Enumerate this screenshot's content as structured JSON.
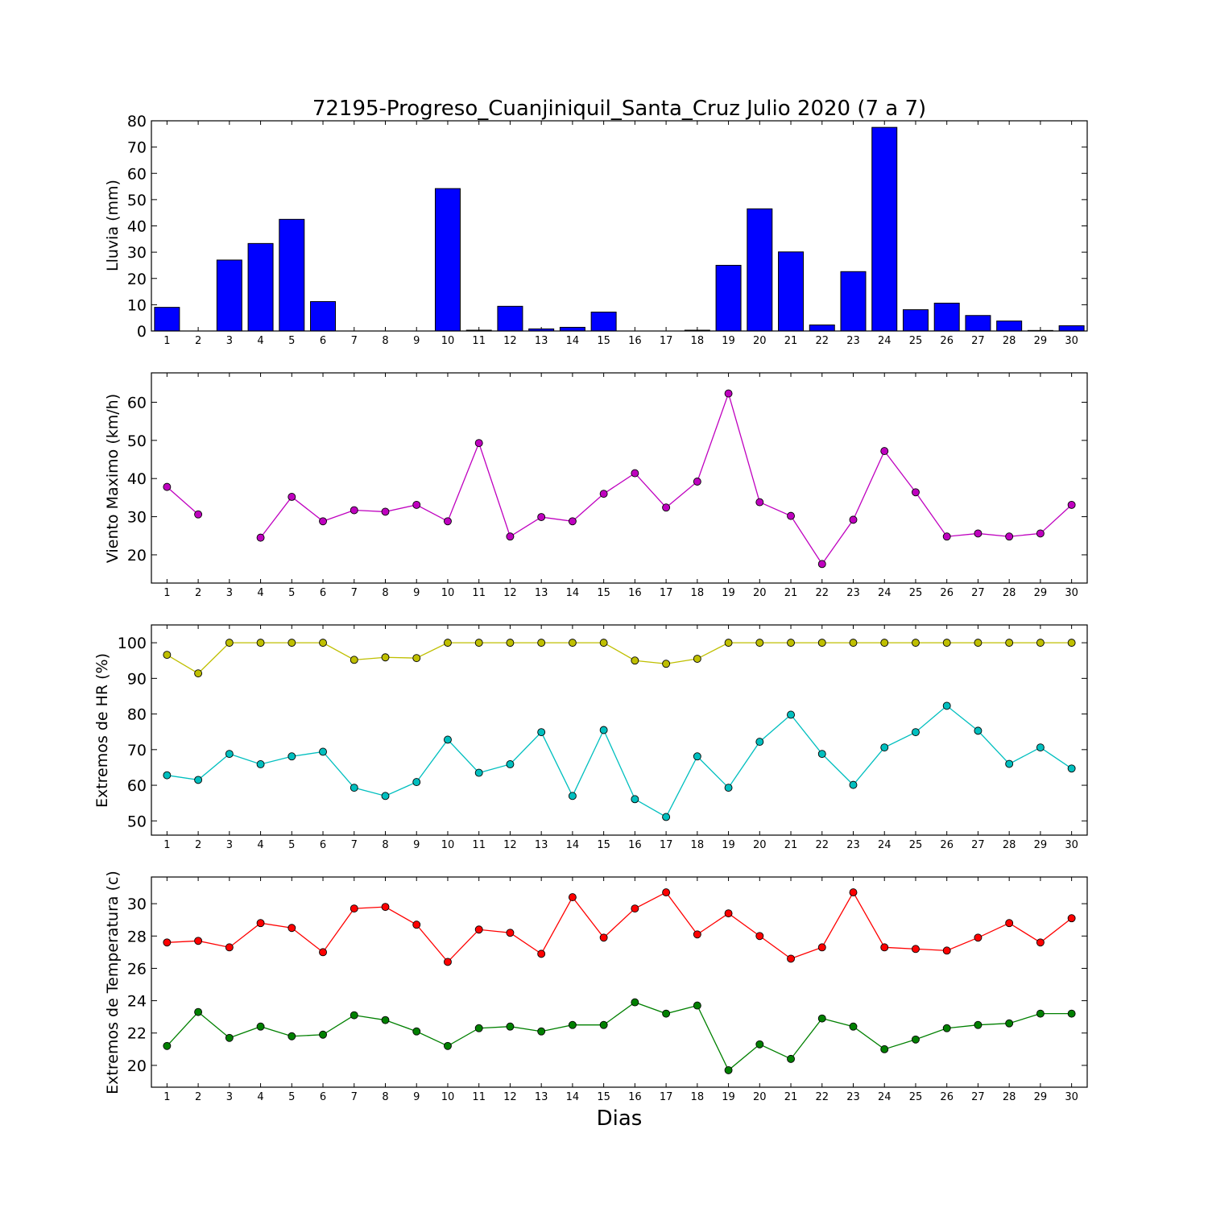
{
  "chart_data": [
    {
      "type": "bar",
      "title": "72195-Progreso_Cuanjiniquil_Santa_Cruz Julio 2020  (7 a 7)",
      "ylabel": "Lluvia (mm)",
      "xlabel": "",
      "x": [
        1,
        2,
        3,
        4,
        5,
        6,
        7,
        8,
        9,
        10,
        11,
        12,
        13,
        14,
        15,
        16,
        17,
        18,
        19,
        20,
        21,
        22,
        23,
        24,
        25,
        26,
        27,
        28,
        29,
        30
      ],
      "ylim": [
        0,
        80
      ],
      "yticks": [
        0,
        10,
        20,
        30,
        40,
        50,
        60,
        70,
        80
      ],
      "color": "#0000ff",
      "series": [
        {
          "values": [
            9,
            0,
            27,
            33.3,
            42.5,
            11.2,
            0,
            0,
            0,
            54.2,
            0.3,
            9.4,
            0.8,
            1.4,
            7.2,
            0,
            0,
            0.3,
            25,
            46.5,
            30.1,
            2.3,
            22.6,
            77.5,
            8.1,
            10.6,
            5.9,
            3.8,
            0.2,
            2
          ]
        }
      ]
    },
    {
      "type": "line",
      "ylabel": "Viento Maximo (km/h)",
      "xlabel": "",
      "x": [
        1,
        2,
        3,
        4,
        5,
        6,
        7,
        8,
        9,
        10,
        11,
        12,
        13,
        14,
        15,
        16,
        17,
        18,
        19,
        20,
        21,
        22,
        23,
        24,
        25,
        26,
        27,
        28,
        29,
        30
      ],
      "ylim": [
        12.6,
        67.7
      ],
      "yticks": [
        20,
        30,
        40,
        50,
        60
      ],
      "series": [
        {
          "color": "#bf00bf",
          "values": [
            37.8,
            30.6,
            null,
            24.5,
            35.2,
            28.8,
            31.7,
            31.3,
            33.1,
            28.8,
            49.3,
            24.8,
            29.9,
            28.8,
            36,
            41.4,
            32.4,
            39.2,
            62.3,
            33.8,
            30.2,
            17.6,
            29.2,
            47.2,
            36.4,
            24.8,
            25.6,
            24.8,
            25.6,
            33.1
          ]
        }
      ]
    },
    {
      "type": "line",
      "ylabel": "Extremos de HR (%)",
      "xlabel": "",
      "x": [
        1,
        2,
        3,
        4,
        5,
        6,
        7,
        8,
        9,
        10,
        11,
        12,
        13,
        14,
        15,
        16,
        17,
        18,
        19,
        20,
        21,
        22,
        23,
        24,
        25,
        26,
        27,
        28,
        29,
        30
      ],
      "ylim": [
        46,
        105
      ],
      "yticks": [
        50,
        60,
        70,
        80,
        90,
        100
      ],
      "series": [
        {
          "color": "#bfbf00",
          "values": [
            96.6,
            91.4,
            100,
            100,
            100,
            100,
            95.2,
            95.9,
            95.7,
            100,
            100,
            100,
            100,
            100,
            100,
            95,
            94.1,
            95.5,
            100,
            100,
            100,
            100,
            100,
            100,
            100,
            100,
            100,
            100,
            100,
            100
          ]
        },
        {
          "color": "#00bfbf",
          "values": [
            62.8,
            61.5,
            68.8,
            65.9,
            68.1,
            69.4,
            59.3,
            57,
            60.9,
            72.8,
            63.5,
            65.9,
            74.9,
            57,
            75.5,
            56.1,
            51.1,
            68.1,
            59.3,
            72.2,
            79.8,
            68.8,
            60.1,
            70.6,
            74.9,
            82.3,
            75.3,
            66,
            70.6,
            64.7
          ]
        }
      ]
    },
    {
      "type": "line",
      "ylabel": "Extremos de Temperatura (c)",
      "xlabel": "Dias",
      "x": [
        1,
        2,
        3,
        4,
        5,
        6,
        7,
        8,
        9,
        10,
        11,
        12,
        13,
        14,
        15,
        16,
        17,
        18,
        19,
        20,
        21,
        22,
        23,
        24,
        25,
        26,
        27,
        28,
        29,
        30
      ],
      "ylim": [
        18.65,
        31.65
      ],
      "yticks": [
        20,
        22,
        24,
        26,
        28,
        30
      ],
      "series": [
        {
          "color": "#ff0000",
          "values": [
            27.6,
            27.7,
            27.3,
            28.8,
            28.5,
            27,
            29.7,
            29.8,
            28.7,
            26.4,
            28.4,
            28.2,
            26.9,
            30.4,
            27.9,
            29.7,
            30.7,
            28.1,
            29.4,
            28,
            26.6,
            27.3,
            30.7,
            27.3,
            27.2,
            27.1,
            27.9,
            28.8,
            27.6,
            29.1
          ]
        },
        {
          "color": "#008000",
          "values": [
            21.2,
            23.3,
            21.7,
            22.4,
            21.8,
            21.9,
            23.1,
            22.8,
            22.1,
            21.2,
            22.3,
            22.4,
            22.1,
            22.5,
            22.5,
            23.9,
            23.2,
            23.7,
            19.7,
            21.3,
            20.4,
            22.9,
            22.4,
            21,
            21.6,
            22.3,
            22.5,
            22.6,
            23.2,
            23.2
          ]
        }
      ]
    }
  ]
}
